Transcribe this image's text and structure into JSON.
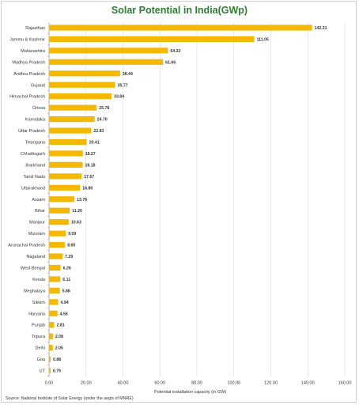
{
  "chart_data": {
    "type": "bar",
    "orientation": "horizontal",
    "title": "Solar Potential in India(GWp)",
    "xlabel": "Potential installation capacity (in GW)",
    "ylabel": "",
    "xlim": [
      0,
      160
    ],
    "xticks": [
      "0.00",
      "20.00",
      "40.00",
      "60.00",
      "80.00",
      "100.00",
      "120.00",
      "140.00",
      "160.00"
    ],
    "grid": true,
    "source": "Source: National Institute of Solar Energy (under the aegis of MNRE)",
    "bar_color": "#f5b800",
    "title_color": "#2e7d32",
    "categories": [
      "Rajasthan",
      "Jammu & Kashmir",
      "Maharashtra",
      "Madhya Pradesh",
      "Andhra Pradesh",
      "Gujarat",
      "Himachal Pradesh",
      "Orissa",
      "Karnataka",
      "Uttar Pradesh",
      "Telangana",
      "Chhattisgarh",
      "Jharkhand",
      "Tamil Nadu",
      "Uttarakhand",
      "Assam",
      "Bihar",
      "Manipur",
      "Mizoram",
      "Arunachal Pradesh",
      "Nagaland",
      "West Bengal",
      "Kerala",
      "Meghalaya",
      "Sikkim",
      "Haryana",
      "Punjab",
      "Tripura",
      "Delhi",
      "Goa",
      "UT"
    ],
    "values": [
      142.31,
      111.05,
      64.32,
      61.66,
      38.44,
      35.77,
      33.84,
      25.78,
      24.7,
      22.83,
      20.41,
      18.27,
      18.18,
      17.67,
      16.8,
      13.76,
      11.2,
      10.63,
      9.09,
      8.65,
      7.29,
      6.26,
      6.11,
      5.86,
      4.94,
      4.56,
      2.81,
      2.08,
      2.05,
      0.88,
      0.79
    ],
    "value_labels": [
      "142.31",
      "111.05",
      "64.32",
      "61.66",
      "38.44",
      "35.77",
      "33.84",
      "25.78",
      "24.70",
      "22.83",
      "20.41",
      "18.27",
      "18.18",
      "17.67",
      "16.80",
      "13.76",
      "11.20",
      "10.63",
      "9.09",
      "8.65",
      "7.29",
      "6.26",
      "6.11",
      "5.86",
      "4.94",
      "4.56",
      "2.81",
      "2.08",
      "2.05",
      "0.88",
      "0.79"
    ]
  }
}
